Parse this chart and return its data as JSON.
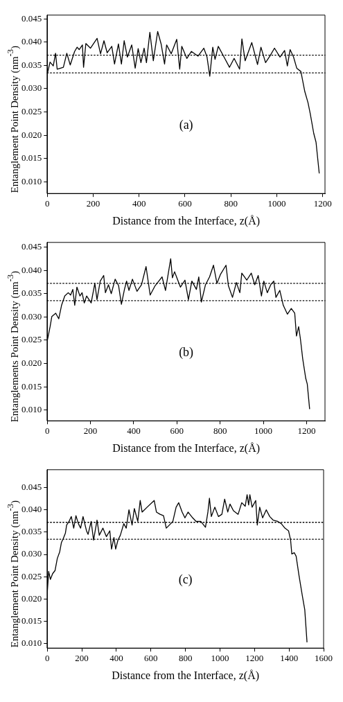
{
  "chart_data": [
    {
      "type": "line",
      "xlabel": "Distance from the Interface, z(Å)",
      "ylabel": "Entanglement Point Density (nm$^{-3}$)",
      "annotations": [
        "(a)"
      ],
      "grid": false,
      "legend": false,
      "marker": "none",
      "line_style": "solid",
      "xlim": [
        0,
        1210
      ],
      "xticks": [
        0,
        200,
        400,
        600,
        800,
        1000,
        1200
      ],
      "ylim": [
        0.0075,
        0.0458
      ],
      "yticks": [
        {
          "value": 0.01,
          "label": "0.010"
        },
        0.015,
        {
          "value": 0.02,
          "label": "0.020"
        },
        0.025,
        {
          "value": 0.03,
          "label": "0.030"
        },
        0.035,
        {
          "value": 0.04,
          "label": "0.040"
        },
        0.045
      ],
      "ref_lines": [
        {
          "axis": "y",
          "value": 0.0372,
          "color": "#000000",
          "line_style": "dotted"
        },
        {
          "axis": "y",
          "value": 0.0334,
          "color": "#000000",
          "line_style": "dotted"
        }
      ],
      "series": [
        {
          "color": "#000000",
          "x": [
            0,
            12,
            26,
            36,
            43,
            70,
            85,
            100,
            119,
            130,
            139,
            153,
            158,
            168,
            188,
            217,
            232,
            247,
            261,
            281,
            293,
            310,
            323,
            335,
            349,
            368,
            383,
            396,
            408,
            422,
            432,
            447,
            462,
            481,
            496,
            511,
            520,
            540,
            564,
            577,
            586,
            608,
            628,
            657,
            682,
            696,
            708,
            721,
            731,
            745,
            770,
            794,
            814,
            838,
            848,
            862,
            891,
            916,
            931,
            951,
            970,
            990,
            1014,
            1034,
            1046,
            1058,
            1073,
            1087,
            1105,
            1122,
            1136,
            1146,
            1161,
            1171,
            1185
          ],
          "values": [
            0.0332,
            0.0357,
            0.0349,
            0.0376,
            0.0342,
            0.0346,
            0.0376,
            0.0351,
            0.038,
            0.0389,
            0.0384,
            0.0394,
            0.0346,
            0.0397,
            0.0387,
            0.0408,
            0.0375,
            0.0403,
            0.0377,
            0.0391,
            0.0353,
            0.0396,
            0.0353,
            0.0403,
            0.0368,
            0.0394,
            0.0344,
            0.0386,
            0.0356,
            0.0387,
            0.0356,
            0.0421,
            0.036,
            0.0423,
            0.0396,
            0.0353,
            0.0394,
            0.0375,
            0.0406,
            0.0342,
            0.0391,
            0.0365,
            0.038,
            0.037,
            0.0387,
            0.0368,
            0.0327,
            0.0389,
            0.0363,
            0.0391,
            0.0368,
            0.0346,
            0.0365,
            0.0342,
            0.0407,
            0.036,
            0.0399,
            0.0352,
            0.0389,
            0.0356,
            0.037,
            0.0387,
            0.0368,
            0.0382,
            0.0349,
            0.0384,
            0.0368,
            0.0344,
            0.0337,
            0.0294,
            0.027,
            0.0246,
            0.0204,
            0.0185,
            0.0118
          ]
        }
      ]
    },
    {
      "type": "line",
      "xlabel": "Distance from the Interface, z(Å)",
      "ylabel": "Entanglements Point Density (nm$^{-3}$)",
      "annotations": [
        "(b)"
      ],
      "grid": false,
      "legend": false,
      "marker": "none",
      "line_style": "solid",
      "xlim": [
        0,
        1285
      ],
      "xticks": [
        0,
        200,
        400,
        600,
        800,
        1000,
        1200
      ],
      "ylim": [
        0.0077,
        0.046
      ],
      "yticks": [
        {
          "value": 0.01,
          "label": "0.010"
        },
        0.015,
        {
          "value": 0.02,
          "label": "0.020"
        },
        0.025,
        {
          "value": 0.03,
          "label": "0.030"
        },
        0.035,
        {
          "value": 0.04,
          "label": "0.040"
        },
        0.045
      ],
      "ref_lines": [
        {
          "axis": "y",
          "value": 0.0372,
          "color": "#000000",
          "line_style": "dotted"
        },
        {
          "axis": "y",
          "value": 0.0335,
          "color": "#000000",
          "line_style": "dotted"
        }
      ],
      "series": [
        {
          "color": "#000000",
          "x": [
            0,
            13,
            21,
            39,
            53,
            66,
            81,
            97,
            108,
            118,
            127,
            137,
            151,
            161,
            171,
            182,
            203,
            220,
            230,
            245,
            261,
            269,
            283,
            296,
            314,
            330,
            343,
            357,
            367,
            378,
            394,
            415,
            436,
            457,
            476,
            499,
            531,
            547,
            571,
            579,
            589,
            616,
            637,
            653,
            669,
            690,
            701,
            713,
            732,
            751,
            769,
            785,
            801,
            827,
            838,
            857,
            875,
            891,
            900,
            923,
            944,
            960,
            976,
            991,
            1002,
            1018,
            1034,
            1048,
            1058,
            1076,
            1092,
            1111,
            1129,
            1145,
            1153,
            1163,
            1171,
            1182,
            1196,
            1203,
            1214
          ],
          "values": [
            0.0249,
            0.0279,
            0.0301,
            0.0308,
            0.0296,
            0.0325,
            0.0345,
            0.0352,
            0.0347,
            0.0359,
            0.0325,
            0.0364,
            0.0345,
            0.0352,
            0.033,
            0.0345,
            0.033,
            0.0372,
            0.0337,
            0.0377,
            0.0389,
            0.0352,
            0.0369,
            0.035,
            0.0381,
            0.0367,
            0.0327,
            0.0359,
            0.0377,
            0.0357,
            0.0381,
            0.0355,
            0.0369,
            0.0408,
            0.0347,
            0.0367,
            0.0386,
            0.0357,
            0.0425,
            0.0384,
            0.0397,
            0.0364,
            0.0379,
            0.0337,
            0.0377,
            0.0359,
            0.0386,
            0.0332,
            0.0369,
            0.0386,
            0.0411,
            0.0372,
            0.0391,
            0.0411,
            0.0367,
            0.0342,
            0.0374,
            0.0352,
            0.0394,
            0.0379,
            0.0394,
            0.0369,
            0.0389,
            0.0345,
            0.0377,
            0.0352,
            0.0369,
            0.0377,
            0.0342,
            0.0357,
            0.0325,
            0.0306,
            0.0318,
            0.0308,
            0.0259,
            0.0279,
            0.0254,
            0.021,
            0.0168,
            0.0156,
            0.0102
          ]
        }
      ]
    },
    {
      "type": "line",
      "xlabel": "Distance from the Interface, z(Å)",
      "ylabel": "Entanglement Point Density (nm$^{-3}$)",
      "annotations": [
        "(c)"
      ],
      "grid": false,
      "legend": false,
      "marker": "none",
      "line_style": "solid",
      "xlim": [
        0,
        1600
      ],
      "xticks": [
        0,
        200,
        400,
        600,
        800,
        1000,
        1200,
        1400,
        1600
      ],
      "ylim": [
        0.009,
        0.049
      ],
      "yticks": [
        {
          "value": 0.01,
          "label": "0.010"
        },
        0.015,
        {
          "value": 0.02,
          "label": "0.020"
        },
        0.025,
        {
          "value": 0.03,
          "label": "0.030"
        },
        0.035,
        {
          "value": 0.04,
          "label": "0.040"
        },
        0.045
      ],
      "ref_lines": [
        {
          "axis": "y",
          "value": 0.0372,
          "color": "#000000",
          "line_style": "dotted"
        },
        {
          "axis": "y",
          "value": 0.0334,
          "color": "#000000",
          "line_style": "dotted"
        }
      ],
      "series": [
        {
          "color": "#000000",
          "x": [
            0,
            8,
            18,
            31,
            45,
            58,
            72,
            82,
            92,
            105,
            112,
            126,
            139,
            153,
            166,
            180,
            193,
            207,
            227,
            236,
            254,
            268,
            288,
            301,
            322,
            342,
            362,
            372,
            386,
            396,
            409,
            423,
            443,
            457,
            473,
            491,
            504,
            524,
            538,
            549,
            578,
            619,
            632,
            653,
            673,
            689,
            707,
            727,
            746,
            761,
            781,
            797,
            815,
            842,
            862,
            889,
            916,
            930,
            939,
            950,
            970,
            991,
            1011,
            1027,
            1045,
            1058,
            1078,
            1105,
            1126,
            1146,
            1157,
            1166,
            1173,
            1186,
            1207,
            1216,
            1230,
            1247,
            1268,
            1288,
            1308,
            1335,
            1355,
            1376,
            1397,
            1409,
            1416,
            1430,
            1441,
            1457,
            1477,
            1491,
            1504
          ],
          "values": [
            0.0215,
            0.0262,
            0.0244,
            0.0257,
            0.0264,
            0.0291,
            0.0306,
            0.0327,
            0.0335,
            0.0348,
            0.0366,
            0.0374,
            0.0385,
            0.0359,
            0.0387,
            0.0369,
            0.0359,
            0.0385,
            0.0353,
            0.0345,
            0.0374,
            0.0332,
            0.0377,
            0.0343,
            0.0359,
            0.034,
            0.0353,
            0.0312,
            0.0338,
            0.0312,
            0.0332,
            0.0343,
            0.0369,
            0.0359,
            0.04,
            0.0366,
            0.0403,
            0.0374,
            0.0421,
            0.0395,
            0.0406,
            0.0421,
            0.0395,
            0.039,
            0.0387,
            0.0359,
            0.0366,
            0.0374,
            0.0406,
            0.0416,
            0.0395,
            0.0382,
            0.0395,
            0.0382,
            0.0374,
            0.0374,
            0.0361,
            0.0395,
            0.0426,
            0.0385,
            0.0406,
            0.0385,
            0.039,
            0.0424,
            0.0395,
            0.0413,
            0.0398,
            0.039,
            0.0416,
            0.0408,
            0.0434,
            0.0411,
            0.0434,
            0.0406,
            0.0421,
            0.0366,
            0.0406,
            0.0382,
            0.04,
            0.0385,
            0.0377,
            0.0374,
            0.0369,
            0.0359,
            0.0353,
            0.0332,
            0.0301,
            0.0304,
            0.0296,
            0.0254,
            0.0207,
            0.0176,
            0.0103
          ]
        }
      ]
    }
  ]
}
